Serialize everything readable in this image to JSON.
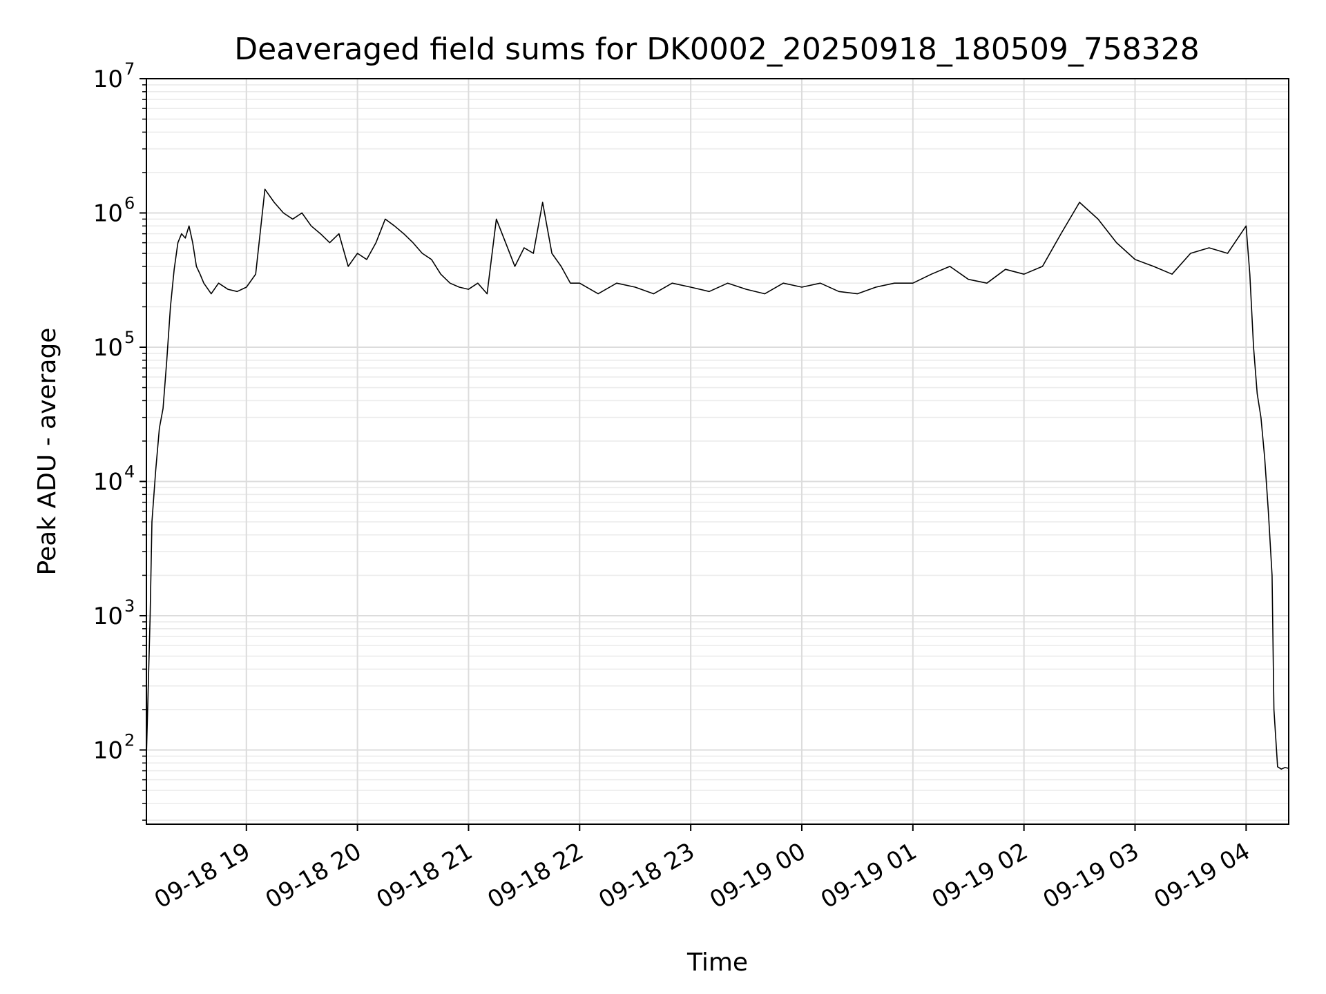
{
  "chart_data": {
    "type": "line",
    "title": "Deaveraged field sums for DK0002_20250918_180509_758328",
    "xlabel": "Time",
    "ylabel": "Peak ADU - average",
    "yscale": "log",
    "ylim": [
      28,
      10000000
    ],
    "xlim": [
      "2025-09-18 18:06",
      "2025-09-19 04:23"
    ],
    "grid": true,
    "line_color": "#000000",
    "x_ticks": [
      {
        "time": "2025-09-18 19:00",
        "label": "09-18 19"
      },
      {
        "time": "2025-09-18 20:00",
        "label": "09-18 20"
      },
      {
        "time": "2025-09-18 21:00",
        "label": "09-18 21"
      },
      {
        "time": "2025-09-18 22:00",
        "label": "09-18 22"
      },
      {
        "time": "2025-09-18 23:00",
        "label": "09-18 23"
      },
      {
        "time": "2025-09-19 00:00",
        "label": "09-19 00"
      },
      {
        "time": "2025-09-19 01:00",
        "label": "09-19 01"
      },
      {
        "time": "2025-09-19 02:00",
        "label": "09-19 02"
      },
      {
        "time": "2025-09-19 03:00",
        "label": "09-19 03"
      },
      {
        "time": "2025-09-19 04:00",
        "label": "09-19 04"
      }
    ],
    "y_ticks": [
      {
        "value": 100,
        "base": "10",
        "exp": "2"
      },
      {
        "value": 1000,
        "base": "10",
        "exp": "3"
      },
      {
        "value": 10000,
        "base": "10",
        "exp": "4"
      },
      {
        "value": 100000,
        "base": "10",
        "exp": "5"
      },
      {
        "value": 1000000,
        "base": "10",
        "exp": "6"
      },
      {
        "value": 10000000,
        "base": "10",
        "exp": "7"
      }
    ],
    "series": [
      {
        "x": [
          "2025-09-18 18:06",
          "2025-09-18 18:08",
          "2025-09-18 18:09",
          "2025-09-18 18:11",
          "2025-09-18 18:13",
          "2025-09-18 18:15",
          "2025-09-18 18:17",
          "2025-09-18 18:19",
          "2025-09-18 18:21",
          "2025-09-18 18:23",
          "2025-09-18 18:25",
          "2025-09-18 18:27",
          "2025-09-18 18:29",
          "2025-09-18 18:31",
          "2025-09-18 18:33",
          "2025-09-18 18:35",
          "2025-09-18 18:37",
          "2025-09-18 18:41",
          "2025-09-18 18:45",
          "2025-09-18 18:50",
          "2025-09-18 18:55",
          "2025-09-18 19:00",
          "2025-09-18 19:05",
          "2025-09-18 19:10",
          "2025-09-18 19:15",
          "2025-09-18 19:20",
          "2025-09-18 19:25",
          "2025-09-18 19:30",
          "2025-09-18 19:35",
          "2025-09-18 19:40",
          "2025-09-18 19:45",
          "2025-09-18 19:50",
          "2025-09-18 19:55",
          "2025-09-18 20:00",
          "2025-09-18 20:05",
          "2025-09-18 20:10",
          "2025-09-18 20:15",
          "2025-09-18 20:20",
          "2025-09-18 20:25",
          "2025-09-18 20:30",
          "2025-09-18 20:35",
          "2025-09-18 20:40",
          "2025-09-18 20:45",
          "2025-09-18 20:50",
          "2025-09-18 20:55",
          "2025-09-18 21:00",
          "2025-09-18 21:05",
          "2025-09-18 21:10",
          "2025-09-18 21:15",
          "2025-09-18 21:20",
          "2025-09-18 21:25",
          "2025-09-18 21:30",
          "2025-09-18 21:35",
          "2025-09-18 21:40",
          "2025-09-18 21:45",
          "2025-09-18 21:50",
          "2025-09-18 21:55",
          "2025-09-18 22:00",
          "2025-09-18 22:10",
          "2025-09-18 22:20",
          "2025-09-18 22:30",
          "2025-09-18 22:40",
          "2025-09-18 22:50",
          "2025-09-18 23:00",
          "2025-09-18 23:10",
          "2025-09-18 23:20",
          "2025-09-18 23:30",
          "2025-09-18 23:40",
          "2025-09-18 23:50",
          "2025-09-19 00:00",
          "2025-09-19 00:10",
          "2025-09-19 00:20",
          "2025-09-19 00:30",
          "2025-09-19 00:40",
          "2025-09-19 00:50",
          "2025-09-19 01:00",
          "2025-09-19 01:10",
          "2025-09-19 01:20",
          "2025-09-19 01:30",
          "2025-09-19 01:40",
          "2025-09-19 01:50",
          "2025-09-19 02:00",
          "2025-09-19 02:10",
          "2025-09-19 02:20",
          "2025-09-19 02:30",
          "2025-09-19 02:40",
          "2025-09-19 02:50",
          "2025-09-19 03:00",
          "2025-09-19 03:10",
          "2025-09-19 03:20",
          "2025-09-19 03:30",
          "2025-09-19 03:40",
          "2025-09-19 03:50",
          "2025-09-19 04:00",
          "2025-09-19 04:02",
          "2025-09-19 04:04",
          "2025-09-19 04:06",
          "2025-09-19 04:08",
          "2025-09-19 04:10",
          "2025-09-19 04:12",
          "2025-09-19 04:14",
          "2025-09-19 04:15",
          "2025-09-19 04:17",
          "2025-09-19 04:19",
          "2025-09-19 04:21",
          "2025-09-19 04:23"
        ],
        "y": [
          90,
          1000,
          5000,
          12000,
          25000,
          35000,
          80000,
          200000,
          380000,
          600000,
          700000,
          650000,
          800000,
          600000,
          400000,
          350000,
          300000,
          250000,
          300000,
          270000,
          260000,
          280000,
          350000,
          1500000,
          1200000,
          1000000,
          900000,
          1000000,
          800000,
          700000,
          600000,
          700000,
          400000,
          500000,
          450000,
          600000,
          900000,
          800000,
          700000,
          600000,
          500000,
          450000,
          350000,
          300000,
          280000,
          270000,
          300000,
          250000,
          900000,
          600000,
          400000,
          550000,
          500000,
          1200000,
          500000,
          400000,
          300000,
          300000,
          250000,
          300000,
          280000,
          250000,
          300000,
          280000,
          260000,
          300000,
          270000,
          250000,
          300000,
          280000,
          300000,
          260000,
          250000,
          280000,
          300000,
          300000,
          350000,
          400000,
          320000,
          300000,
          380000,
          350000,
          400000,
          700000,
          1200000,
          900000,
          600000,
          450000,
          400000,
          350000,
          500000,
          550000,
          500000,
          800000,
          350000,
          100000,
          45000,
          30000,
          15000,
          6000,
          2000,
          200,
          75,
          72,
          74,
          73
        ]
      }
    ]
  }
}
